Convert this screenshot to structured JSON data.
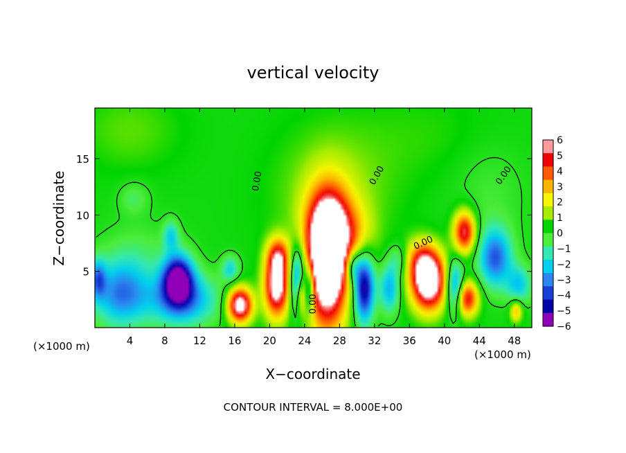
{
  "chart_data": {
    "type": "heatmap",
    "title": "vertical velocity",
    "xlabel": "X−coordinate",
    "ylabel": "Z−coordinate",
    "x_unit_left": "(×1000 m)",
    "x_unit_right": "(×1000 m)",
    "xlim": [
      0,
      50
    ],
    "ylim": [
      0,
      19.5
    ],
    "x_ticks": [
      4,
      8,
      12,
      16,
      20,
      24,
      28,
      32,
      36,
      40,
      44,
      48
    ],
    "y_ticks": [
      5,
      10,
      15
    ],
    "colorbar": {
      "min": -6,
      "max": 6,
      "tick_values": [
        6,
        5,
        4,
        3,
        2,
        1,
        0,
        -1,
        -2,
        -3,
        -4,
        -5,
        -6
      ],
      "tick_labels": [
        "6",
        "5",
        "4",
        "3",
        "2",
        "1",
        "0",
        "−1",
        "−2",
        "−3",
        "−4",
        "−5",
        "−6"
      ]
    },
    "contour_labels": [
      {
        "text": "0.00",
        "x": 18.6,
        "y": 13.0,
        "angle": -80
      },
      {
        "text": "0.00",
        "x": 32.3,
        "y": 13.5,
        "angle": -60
      },
      {
        "text": "0.00",
        "x": 37.6,
        "y": 7.5,
        "angle": -25
      },
      {
        "text": "0.00",
        "x": 46.8,
        "y": 13.5,
        "angle": -55
      },
      {
        "text": "0.00",
        "x": 25.0,
        "y": 2.1,
        "angle": -90
      }
    ],
    "features": [
      {
        "x": 26.6,
        "y": 5.5,
        "sx": 1.6,
        "sy": 3.8,
        "a": 9.0
      },
      {
        "x": 26.9,
        "y": 8.8,
        "sx": 1.9,
        "sy": 2.5,
        "a": 3.5
      },
      {
        "x": 27.2,
        "y": 12.0,
        "sx": 4.5,
        "sy": 4.0,
        "a": 1.2
      },
      {
        "x": 20.8,
        "y": 3.8,
        "sx": 1.0,
        "sy": 2.0,
        "a": 7.0
      },
      {
        "x": 21.0,
        "y": 6.5,
        "sx": 0.9,
        "sy": 1.1,
        "a": 3.0
      },
      {
        "x": 16.6,
        "y": 2.0,
        "sx": 1.0,
        "sy": 1.1,
        "a": 7.0
      },
      {
        "x": 38.2,
        "y": 3.9,
        "sx": 1.4,
        "sy": 1.7,
        "a": 7.5
      },
      {
        "x": 37.5,
        "y": 6.0,
        "sx": 1.4,
        "sy": 1.3,
        "a": 3.5
      },
      {
        "x": 42.3,
        "y": 8.5,
        "sx": 0.9,
        "sy": 1.3,
        "a": 5.5
      },
      {
        "x": 42.6,
        "y": 2.6,
        "sx": 0.9,
        "sy": 1.1,
        "a": 5.0
      },
      {
        "x": 48.2,
        "y": 1.5,
        "sx": 0.5,
        "sy": 0.7,
        "a": 3.0
      },
      {
        "x": 23.6,
        "y": 3.0,
        "sx": 0.45,
        "sy": 1.3,
        "a": 3.5
      },
      {
        "x": 30.0,
        "y": 8.0,
        "sx": 1.5,
        "sy": 2.0,
        "a": 1.5
      },
      {
        "x": 9.5,
        "y": 4.3,
        "sx": 1.2,
        "sy": 1.5,
        "a": -6.5
      },
      {
        "x": 10.0,
        "y": 2.5,
        "sx": 2.8,
        "sy": 1.6,
        "a": -3.5
      },
      {
        "x": 3.0,
        "y": 3.0,
        "sx": 2.2,
        "sy": 2.0,
        "a": -3.6
      },
      {
        "x": 0.4,
        "y": 4.3,
        "sx": 0.6,
        "sy": 1.2,
        "a": -3.0
      },
      {
        "x": 8.7,
        "y": 8.2,
        "sx": 0.6,
        "sy": 0.9,
        "a": -2.2
      },
      {
        "x": 4.5,
        "y": 11.5,
        "sx": 1.2,
        "sy": 1.0,
        "a": -1.0
      },
      {
        "x": 15.5,
        "y": 5.2,
        "sx": 0.7,
        "sy": 0.8,
        "a": -2.2
      },
      {
        "x": 23.2,
        "y": 4.2,
        "sx": 0.6,
        "sy": 2.0,
        "a": -5.0
      },
      {
        "x": 24.5,
        "y": 3.5,
        "sx": 0.45,
        "sy": 1.5,
        "a": -3.5
      },
      {
        "x": 30.8,
        "y": 3.6,
        "sx": 0.8,
        "sy": 2.1,
        "a": -6.0
      },
      {
        "x": 29.5,
        "y": 5.5,
        "sx": 0.6,
        "sy": 1.0,
        "a": -3.0
      },
      {
        "x": 33.7,
        "y": 3.5,
        "sx": 0.8,
        "sy": 1.5,
        "a": -3.0
      },
      {
        "x": 41.2,
        "y": 3.6,
        "sx": 0.7,
        "sy": 1.6,
        "a": -4.0
      },
      {
        "x": 45.8,
        "y": 6.2,
        "sx": 1.3,
        "sy": 1.8,
        "a": -4.0
      },
      {
        "x": 48.5,
        "y": 3.8,
        "sx": 1.0,
        "sy": 1.2,
        "a": -2.5
      },
      {
        "x": 34.8,
        "y": 6.0,
        "sx": 0.8,
        "sy": 1.0,
        "a": -1.5
      },
      {
        "x": 5.0,
        "y": 6.5,
        "sx": 3.0,
        "sy": 2.0,
        "a": -0.8
      },
      {
        "x": 45.0,
        "y": 12.0,
        "sx": 3.0,
        "sy": 3.5,
        "a": -0.6
      },
      {
        "x": 4.0,
        "y": 17.5,
        "sx": 4.0,
        "sy": 2.5,
        "a": 0.7
      },
      {
        "x": 38.0,
        "y": 17.0,
        "sx": 6.0,
        "sy": 3.0,
        "a": 0.4
      }
    ]
  },
  "footer": {
    "contour_interval": "CONTOUR INTERVAL = 8.000E+00"
  },
  "colors": {
    "background": "#ffffff",
    "axes": "#000000",
    "contour": "#000000",
    "colormap": [
      "#8f00b8",
      "#0000a8",
      "#1a3fd8",
      "#2b88f0",
      "#00d0ee",
      "#33e8b4",
      "#4ded3c",
      "#00d400",
      "#a6ec00",
      "#f6f600",
      "#ffb400",
      "#ff5a00",
      "#ee0000",
      "#ff9b9b"
    ]
  }
}
